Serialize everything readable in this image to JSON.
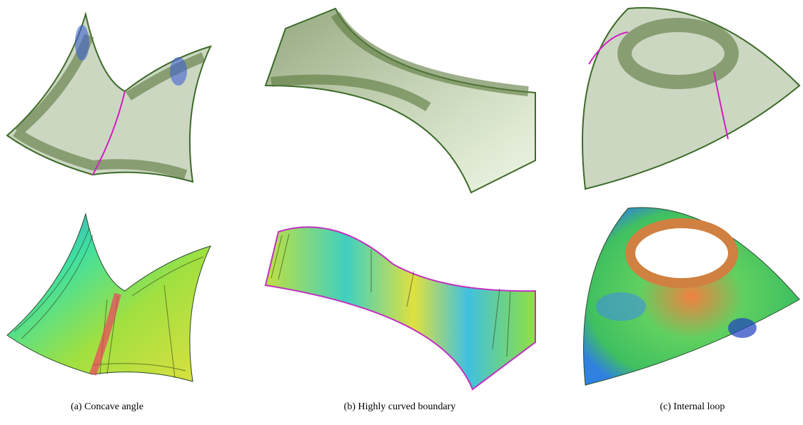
{
  "figure": {
    "subfigures": [
      {
        "caption": "(a) Concave angle"
      },
      {
        "caption": "(b) Highly curved boundary"
      },
      {
        "caption": "(c) Internal loop"
      }
    ]
  }
}
